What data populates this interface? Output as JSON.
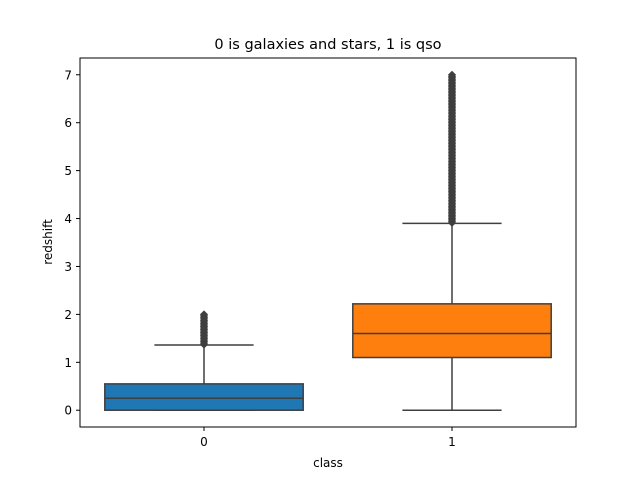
{
  "chart_data": {
    "type": "boxplot",
    "title": "0 is galaxies and stars, 1 is qso",
    "xlabel": "class",
    "ylabel": "redshift",
    "ylim": [
      -0.35,
      7.35
    ],
    "yticks": [
      0,
      1,
      2,
      3,
      4,
      5,
      6,
      7
    ],
    "grid": false,
    "categories": [
      "0",
      "1"
    ],
    "boxes": [
      {
        "category": "0",
        "color": "#1f77b4",
        "whisker_low": 0.0,
        "q1": 0.0,
        "median": 0.25,
        "q3": 0.55,
        "whisker_high": 1.36,
        "outliers_low": 1.37,
        "outliers_high": 2.0
      },
      {
        "category": "1",
        "color": "#ff7f0e",
        "whisker_low": 0.0,
        "q1": 1.1,
        "median": 1.6,
        "q3": 2.22,
        "whisker_high": 3.9,
        "outliers_low": 3.91,
        "outliers_high": 7.0
      }
    ]
  }
}
